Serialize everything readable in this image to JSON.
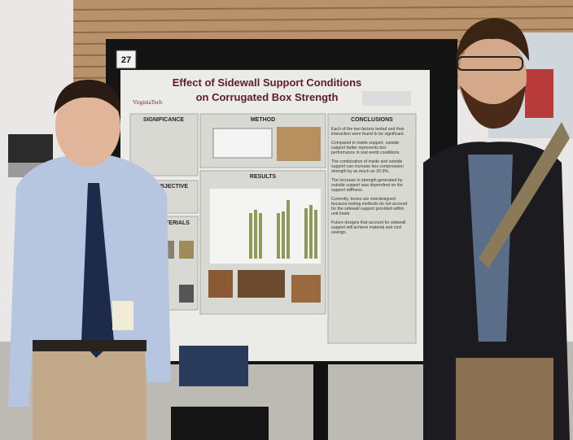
{
  "room_number": "27",
  "poster": {
    "title": [
      "Effect of Sidewall Support Conditions",
      "on Corrugated Box Strength"
    ],
    "logo": "VirginiaTech",
    "sections": {
      "significance": "SIGNIFICANCE",
      "objective": "BJECTIVE",
      "materials": "TERIALS",
      "method": "METHOD",
      "results": "RESULTS",
      "conclusions": {
        "heading": "CONCLUSIONS",
        "items": [
          "Each of the two factors tested and their interaction were found to be significant.",
          "Compared to inside support, outside support better represents box performance in real world conditions.",
          "The combination of inside and outside support can increase box compression strength by as much as 20.3%.",
          "The increase in strength generated by outside support was dependent on the support stiffness.",
          "Currently, boxes are overdesigned because testing methods do not account for the sidewall support provided within unit loads.",
          "Future designs that account for sidewall support will achieve material and cost savings."
        ]
      }
    }
  }
}
